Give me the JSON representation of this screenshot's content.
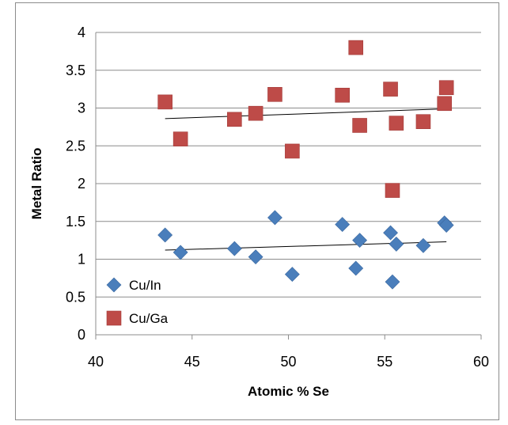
{
  "chart_data": {
    "type": "scatter",
    "title": "",
    "xlabel": "Atomic % Se",
    "ylabel": "Metal Ratio",
    "xlim": [
      40,
      60
    ],
    "ylim": [
      0,
      4
    ],
    "x_ticks": [
      "40",
      "45",
      "50",
      "55",
      "60"
    ],
    "y_ticks": [
      "0",
      "0.5",
      "1",
      "1.5",
      "2",
      "2.5",
      "3",
      "3.5",
      "4"
    ],
    "grid": "horizontal",
    "legend_position": "bottom-left",
    "series": [
      {
        "name": "Cu/In",
        "marker": "diamond",
        "color": "#4a7ebb",
        "points": [
          {
            "x": 43.6,
            "y": 1.32
          },
          {
            "x": 44.4,
            "y": 1.09
          },
          {
            "x": 47.2,
            "y": 1.14
          },
          {
            "x": 48.3,
            "y": 1.03
          },
          {
            "x": 49.3,
            "y": 1.55
          },
          {
            "x": 50.2,
            "y": 0.8
          },
          {
            "x": 52.8,
            "y": 1.46
          },
          {
            "x": 53.5,
            "y": 0.88
          },
          {
            "x": 53.7,
            "y": 1.25
          },
          {
            "x": 55.3,
            "y": 1.35
          },
          {
            "x": 55.4,
            "y": 0.7
          },
          {
            "x": 55.6,
            "y": 1.2
          },
          {
            "x": 57.0,
            "y": 1.18
          },
          {
            "x": 58.1,
            "y": 1.48
          },
          {
            "x": 58.2,
            "y": 1.45
          }
        ],
        "trendline": [
          {
            "x": 43.6,
            "y": 1.12
          },
          {
            "x": 58.2,
            "y": 1.23
          }
        ]
      },
      {
        "name": "Cu/Ga",
        "marker": "square",
        "color": "#be4b48",
        "points": [
          {
            "x": 43.6,
            "y": 3.08
          },
          {
            "x": 44.4,
            "y": 2.59
          },
          {
            "x": 47.2,
            "y": 2.85
          },
          {
            "x": 48.3,
            "y": 2.93
          },
          {
            "x": 49.3,
            "y": 3.18
          },
          {
            "x": 50.2,
            "y": 2.43
          },
          {
            "x": 52.8,
            "y": 3.17
          },
          {
            "x": 53.5,
            "y": 3.8
          },
          {
            "x": 53.7,
            "y": 2.77
          },
          {
            "x": 55.3,
            "y": 3.25
          },
          {
            "x": 55.4,
            "y": 1.91
          },
          {
            "x": 55.6,
            "y": 2.8
          },
          {
            "x": 57.0,
            "y": 2.82
          },
          {
            "x": 58.1,
            "y": 3.06
          },
          {
            "x": 58.2,
            "y": 3.27
          }
        ],
        "trendline": [
          {
            "x": 43.6,
            "y": 2.86
          },
          {
            "x": 58.2,
            "y": 2.99
          }
        ]
      }
    ]
  }
}
